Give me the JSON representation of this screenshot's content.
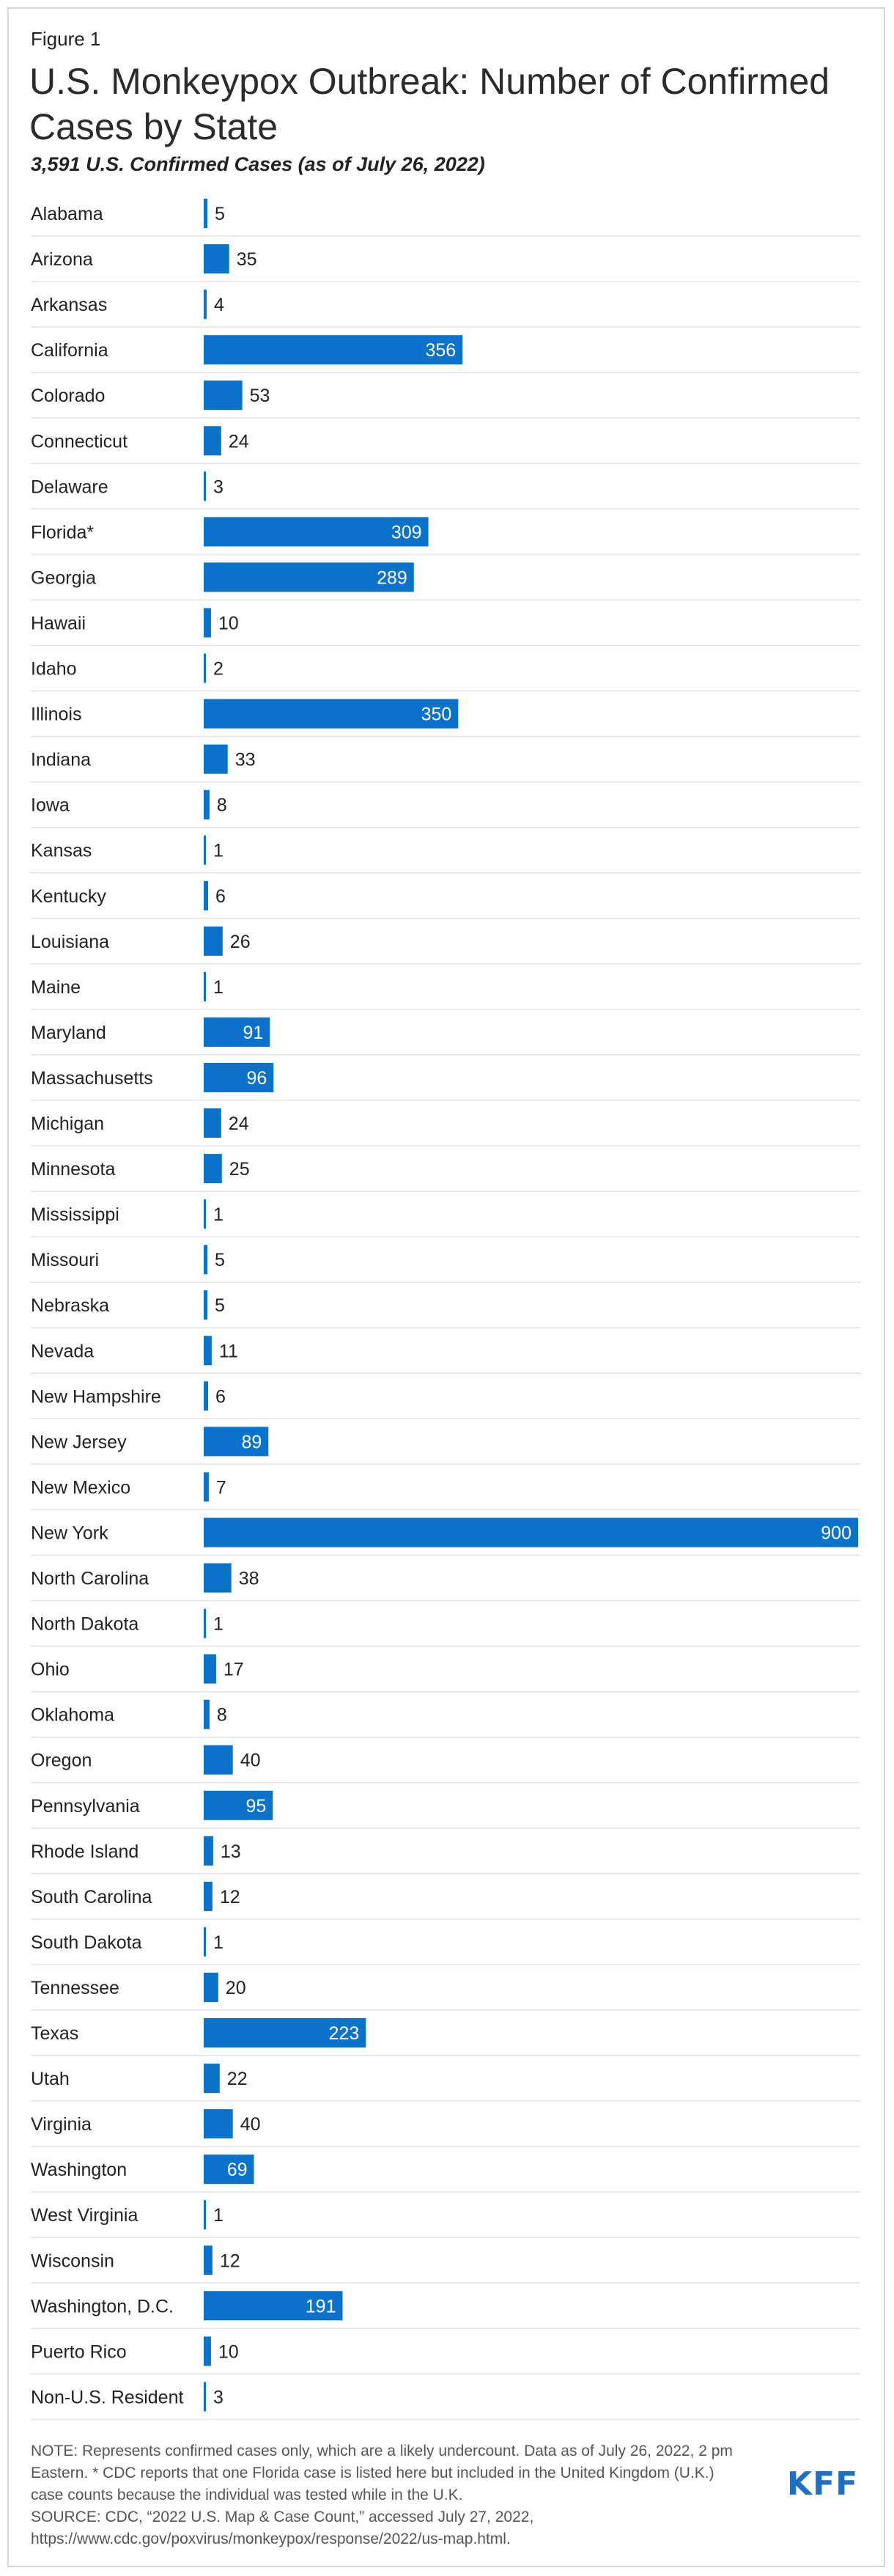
{
  "figure_label": "Figure 1",
  "title": "U.S. Monkeypox Outbreak: Number of Confirmed Cases by State",
  "subtitle": "3,591 U.S. Confirmed Cases (as of July 26, 2022)",
  "note": {
    "line1": "NOTE: Represents confirmed cases only, which are a likely undercount. Data as of July 26, 2022, 2 pm",
    "line2": "Eastern. * CDC reports that one Florida case is listed here but included in the United Kingdom (U.K.)",
    "line3": "case counts because the individual was tested while in the U.K.",
    "line4": "SOURCE: CDC, “2022 U.S. Map & Case Count,” accessed July 27, 2022,",
    "line5": "https://www.cdc.gov/poxvirus/monkeypox/response/2022/us-map.html."
  },
  "logo": "KFF",
  "colors": {
    "bar": "#0a72c9",
    "grid": "#e3e3e3",
    "label_outside": "#222222",
    "label_inside": "#ffffff"
  },
  "chart_data": {
    "type": "bar",
    "orientation": "horizontal",
    "title": "U.S. Monkeypox Outbreak: Number of Confirmed Cases by State",
    "xlim": [
      0,
      900
    ],
    "categories": [
      "Alabama",
      "Arizona",
      "Arkansas",
      "California",
      "Colorado",
      "Connecticut",
      "Delaware",
      "Florida*",
      "Georgia",
      "Hawaii",
      "Idaho",
      "Illinois",
      "Indiana",
      "Iowa",
      "Kansas",
      "Kentucky",
      "Louisiana",
      "Maine",
      "Maryland",
      "Massachusetts",
      "Michigan",
      "Minnesota",
      "Mississippi",
      "Missouri",
      "Nebraska",
      "Nevada",
      "New Hampshire",
      "New Jersey",
      "New Mexico",
      "New York",
      "North Carolina",
      "North Dakota",
      "Ohio",
      "Oklahoma",
      "Oregon",
      "Pennsylvania",
      "Rhode Island",
      "South Carolina",
      "South Dakota",
      "Tennessee",
      "Texas",
      "Utah",
      "Virginia",
      "Washington",
      "West Virginia",
      "Wisconsin",
      "Washington, D.C.",
      "Puerto Rico",
      "Non-U.S. Resident"
    ],
    "values": [
      5,
      35,
      4,
      356,
      53,
      24,
      3,
      309,
      289,
      10,
      2,
      350,
      33,
      8,
      1,
      6,
      26,
      1,
      91,
      96,
      24,
      25,
      1,
      5,
      5,
      11,
      6,
      89,
      7,
      900,
      38,
      1,
      17,
      8,
      40,
      95,
      13,
      12,
      1,
      20,
      223,
      22,
      40,
      69,
      1,
      12,
      191,
      10,
      3
    ]
  }
}
